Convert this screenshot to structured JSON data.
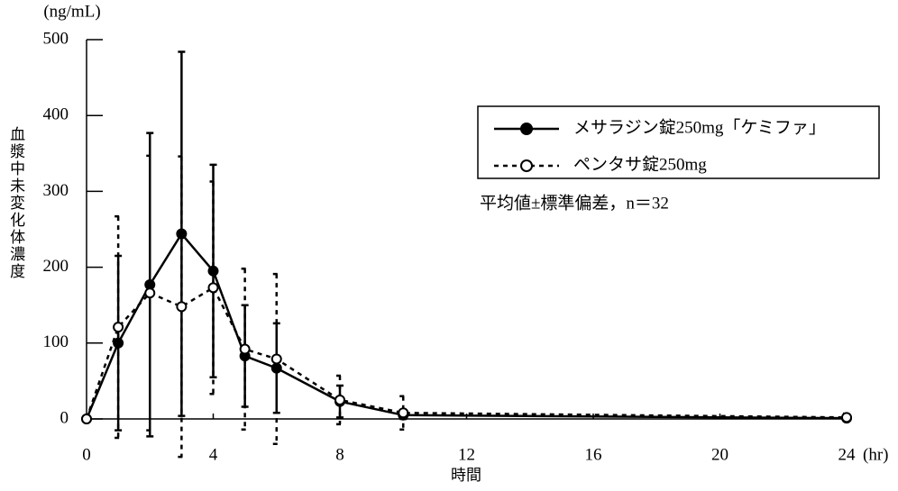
{
  "chart_data": {
    "type": "line",
    "y_unit": "(ng/mL)",
    "y_label": "血漿中未変化体濃度",
    "x_label": "時間",
    "x_unit": "(hr)",
    "annotation": "平均値±標準偏差，n＝32",
    "x": [
      0,
      1,
      2,
      3,
      4,
      5,
      6,
      8,
      10,
      24
    ],
    "series": [
      {
        "name": "メサラジン錠250mg「ケミファ」",
        "color": "#000000",
        "dashed": false,
        "filled_marker": true,
        "values": [
          0,
          100,
          177,
          244,
          195,
          83,
          67,
          23,
          5,
          1
        ],
        "errors": [
          0,
          115,
          200,
          240,
          140,
          67,
          59,
          21,
          5,
          3
        ]
      },
      {
        "name": "ペンタサ錠250mg",
        "color": "#000000",
        "dashed": true,
        "filled_marker": false,
        "values": [
          0,
          121,
          166,
          148,
          173,
          92,
          79,
          25,
          8,
          2
        ],
        "errors": [
          0,
          146,
          181,
          198,
          140,
          106,
          112,
          32,
          22,
          5
        ]
      }
    ],
    "xlim": [
      0,
      24
    ],
    "xticks": [
      0,
      4,
      8,
      12,
      16,
      20,
      24
    ],
    "ylim": [
      0,
      500
    ],
    "yticks": [
      0,
      100,
      200,
      300,
      400,
      500
    ]
  }
}
